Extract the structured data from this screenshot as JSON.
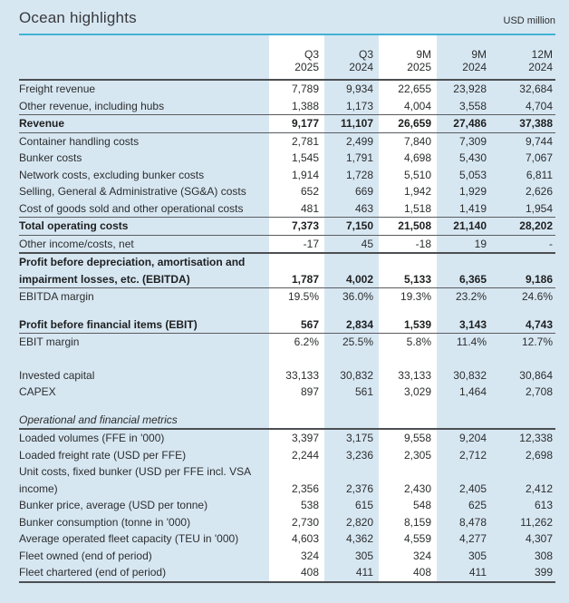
{
  "header": {
    "title": "Ocean highlights",
    "unit": "USD million"
  },
  "columns": [
    {
      "period": "Q3",
      "year": "2025",
      "highlight": true
    },
    {
      "period": "Q3",
      "year": "2024",
      "highlight": false
    },
    {
      "period": "9M",
      "year": "2025",
      "highlight": true
    },
    {
      "period": "9M",
      "year": "2024",
      "highlight": false
    },
    {
      "period": "12M",
      "year": "2024",
      "highlight": false
    }
  ],
  "rows": [
    {
      "label": "Freight revenue",
      "values": [
        "7,789",
        "9,934",
        "22,655",
        "23,928",
        "32,684"
      ]
    },
    {
      "label": "Other revenue, including hubs",
      "values": [
        "1,388",
        "1,173",
        "4,004",
        "3,558",
        "4,704"
      ],
      "rule": "thin"
    },
    {
      "label": "Revenue",
      "bold": true,
      "values": [
        "9,177",
        "11,107",
        "26,659",
        "27,486",
        "37,388"
      ],
      "rule": "thin"
    },
    {
      "label": "Container handling costs",
      "values": [
        "2,781",
        "2,499",
        "7,840",
        "7,309",
        "9,744"
      ]
    },
    {
      "label": "Bunker costs",
      "values": [
        "1,545",
        "1,791",
        "4,698",
        "5,430",
        "7,067"
      ]
    },
    {
      "label": "Network costs, excluding bunker costs",
      "values": [
        "1,914",
        "1,728",
        "5,510",
        "5,053",
        "6,811"
      ]
    },
    {
      "label": "Selling, General & Administrative (SG&A) costs",
      "values": [
        "652",
        "669",
        "1,942",
        "1,929",
        "2,626"
      ]
    },
    {
      "label": "Cost of goods sold and other operational costs",
      "values": [
        "481",
        "463",
        "1,518",
        "1,419",
        "1,954"
      ],
      "rule": "thin"
    },
    {
      "label": "Total operating costs",
      "bold": true,
      "values": [
        "7,373",
        "7,150",
        "21,508",
        "21,140",
        "28,202"
      ],
      "rule": "thin"
    },
    {
      "label": "Other income/costs, net",
      "values": [
        "-17",
        "45",
        "-18",
        "19",
        "-"
      ],
      "rule": "strong"
    },
    {
      "label": "Profit before depreciation, amortisation and impairment losses, etc. (EBITDA)",
      "bold": true,
      "values": [
        "1,787",
        "4,002",
        "5,133",
        "6,365",
        "9,186"
      ],
      "rule": "thin"
    },
    {
      "label": "EBITDA margin",
      "values": [
        "19.5%",
        "36.0%",
        "19.3%",
        "23.2%",
        "24.6%"
      ]
    },
    {
      "spacer": true,
      "height": 12
    },
    {
      "label": "Profit before financial items (EBIT)",
      "bold": true,
      "values": [
        "567",
        "2,834",
        "1,539",
        "3,143",
        "4,743"
      ],
      "rule": "thin"
    },
    {
      "label": "EBIT margin",
      "values": [
        "6.2%",
        "25.5%",
        "5.8%",
        "11.4%",
        "12.7%"
      ]
    },
    {
      "spacer": true,
      "height": 18
    },
    {
      "label": "Invested capital",
      "values": [
        "33,133",
        "30,832",
        "33,133",
        "30,832",
        "30,864"
      ]
    },
    {
      "label": "CAPEX",
      "values": [
        "897",
        "561",
        "3,029",
        "1,464",
        "2,708"
      ]
    },
    {
      "spacer": true,
      "height": 12
    },
    {
      "label": "Operational and financial metrics",
      "italic": true,
      "values": [
        "",
        "",
        "",
        "",
        ""
      ],
      "rule": "strong"
    },
    {
      "label": "Loaded volumes (FFE in '000)",
      "values": [
        "3,397",
        "3,175",
        "9,558",
        "9,204",
        "12,338"
      ]
    },
    {
      "label": "Loaded freight rate (USD per FFE)",
      "values": [
        "2,244",
        "3,236",
        "2,305",
        "2,712",
        "2,698"
      ]
    },
    {
      "label": "Unit costs, fixed bunker (USD per FFE incl. VSA income)",
      "values": [
        "2,356",
        "2,376",
        "2,430",
        "2,405",
        "2,412"
      ]
    },
    {
      "label": "Bunker price, average (USD per tonne)",
      "values": [
        "538",
        "615",
        "548",
        "625",
        "613"
      ]
    },
    {
      "label": "Bunker consumption (tonne in '000)",
      "values": [
        "2,730",
        "2,820",
        "8,159",
        "8,478",
        "11,262"
      ]
    },
    {
      "label": "Average operated fleet capacity (TEU in '000)",
      "values": [
        "4,603",
        "4,362",
        "4,559",
        "4,277",
        "4,307"
      ]
    },
    {
      "label": "Fleet owned (end of period)",
      "values": [
        "324",
        "305",
        "324",
        "305",
        "308"
      ]
    },
    {
      "label": "Fleet chartered (end of period)",
      "values": [
        "408",
        "411",
        "408",
        "411",
        "399"
      ],
      "rule": "strong"
    }
  ],
  "colors": {
    "bg": "#d7e7f2",
    "stripe": "#ffffff",
    "accent": "#43b1d5",
    "text": "#2b2d2e",
    "textBold": "#1d1f20",
    "rule": "#595c5f",
    "ruleStrong": "#4c4f52"
  }
}
